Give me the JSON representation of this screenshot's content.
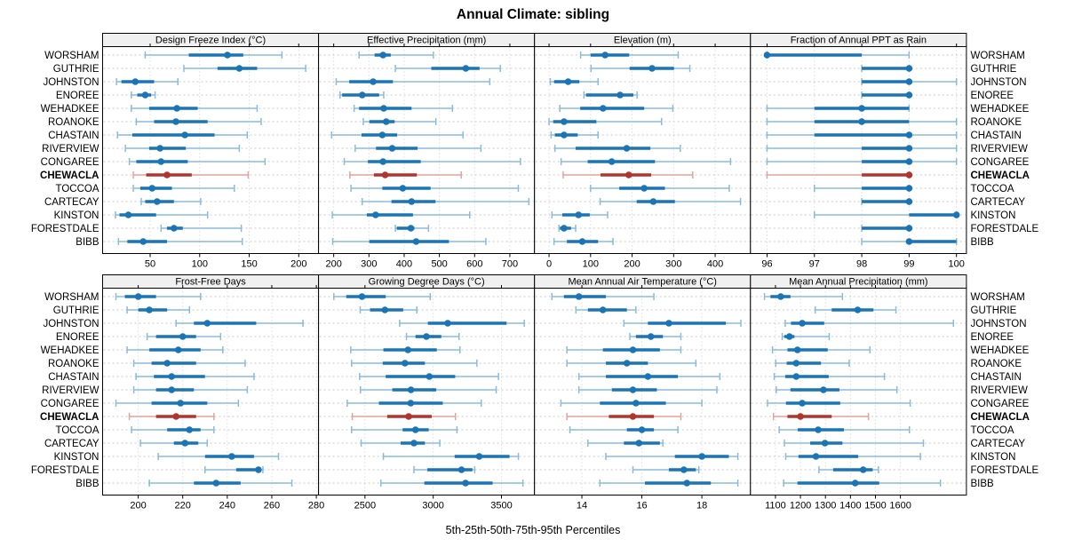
{
  "title": "Annual Climate: sibling",
  "caption": "5th-25th-50th-75th-95th Percentiles",
  "colors": {
    "series": "#1b75b4",
    "series_light": "#8abbdb",
    "highlight": "#b1352c",
    "highlight_light": "#e0a49e",
    "grid": "#c8c8c8",
    "header_bg": "#f0f0f0",
    "border": "#000000"
  },
  "chart_data": {
    "type": "dotplot",
    "subtype": "percentile-interval-trellis",
    "percentile_labels": [
      "5th",
      "25th",
      "50th",
      "75th",
      "95th"
    ],
    "highlighted_series": "CHEWACLA",
    "series_names": [
      "WORSHAM",
      "GUTHRIE",
      "JOHNSTON",
      "ENOREE",
      "WEHADKEE",
      "ROANOKE",
      "CHASTAIN",
      "RIVERVIEW",
      "CONGAREE",
      "CHEWACLA",
      "TOCCOA",
      "CARTECAY",
      "KINSTON",
      "FORESTDALE",
      "BIBB"
    ],
    "layout": {
      "grid_rows": 2,
      "grid_cols": 4,
      "right_labels_mirrored": true,
      "grid": "dotted",
      "legend": false
    },
    "panels": [
      {
        "title": "Design Freeze Index (°C)",
        "xlim": [
          2,
          220
        ],
        "ticks": [
          50,
          100,
          150,
          200
        ],
        "series_values": [
          [
            45,
            89,
            128,
            144,
            183
          ],
          [
            84,
            118,
            140,
            158,
            207
          ],
          [
            16,
            21,
            35,
            54,
            78
          ],
          [
            31,
            37,
            45,
            51,
            55
          ],
          [
            31,
            49,
            77,
            98,
            158
          ],
          [
            36,
            54,
            76,
            108,
            162
          ],
          [
            17,
            32,
            85,
            115,
            148
          ],
          [
            25,
            49,
            60,
            86,
            140
          ],
          [
            29,
            36,
            61,
            88,
            166
          ],
          [
            33,
            46,
            67,
            92,
            149
          ],
          [
            33,
            40,
            52,
            72,
            135
          ],
          [
            41,
            45,
            57,
            74,
            101
          ],
          [
            15,
            19,
            28,
            56,
            108
          ],
          [
            61,
            67,
            74,
            83,
            142
          ],
          [
            18,
            27,
            43,
            67,
            143
          ]
        ]
      },
      {
        "title": "Effective Precipitation (mm)",
        "xlim": [
          157,
          770
        ],
        "ticks": [
          200,
          300,
          400,
          500,
          600,
          700
        ],
        "series_values": [
          [
            272,
            316,
            340,
            362,
            483
          ],
          [
            375,
            477,
            575,
            614,
            673
          ],
          [
            207,
            244,
            312,
            368,
            643
          ],
          [
            218,
            224,
            281,
            329,
            342
          ],
          [
            258,
            272,
            342,
            421,
            537
          ],
          [
            284,
            301,
            349,
            373,
            490
          ],
          [
            194,
            279,
            338,
            380,
            567
          ],
          [
            261,
            320,
            366,
            438,
            618
          ],
          [
            230,
            297,
            340,
            447,
            730
          ],
          [
            246,
            314,
            346,
            436,
            562
          ],
          [
            249,
            338,
            396,
            475,
            724
          ],
          [
            281,
            364,
            421,
            489,
            754
          ],
          [
            196,
            294,
            319,
            425,
            586
          ],
          [
            375,
            379,
            419,
            429,
            469
          ],
          [
            197,
            301,
            434,
            527,
            632
          ]
        ]
      },
      {
        "title": "Elevation (m)",
        "xlim": [
          -35,
          485
        ],
        "ticks": [
          0,
          100,
          200,
          300,
          400
        ],
        "series_values": [
          [
            76,
            100,
            135,
            193,
            311
          ],
          [
            101,
            194,
            248,
            301,
            339
          ],
          [
            3,
            12,
            46,
            73,
            118
          ],
          [
            84,
            89,
            171,
            203,
            212
          ],
          [
            26,
            75,
            130,
            229,
            298
          ],
          [
            0,
            10,
            36,
            114,
            271
          ],
          [
            5,
            14,
            36,
            69,
            118
          ],
          [
            14,
            64,
            187,
            244,
            316
          ],
          [
            29,
            93,
            151,
            255,
            437
          ],
          [
            34,
            124,
            192,
            246,
            346
          ],
          [
            100,
            169,
            229,
            279,
            434
          ],
          [
            123,
            211,
            251,
            303,
            461
          ],
          [
            7,
            32,
            71,
            98,
            141
          ],
          [
            24,
            26,
            36,
            53,
            64
          ],
          [
            12,
            43,
            80,
            118,
            154
          ]
        ]
      },
      {
        "title": "Fraction of Annual PPT as Rain",
        "xlim": [
          95.65,
          100.21
        ],
        "ticks": [
          96,
          97,
          98,
          99,
          100
        ],
        "series_values": [
          [
            96,
            96,
            96,
            98,
            99
          ],
          [
            98,
            98,
            99,
            99,
            99
          ],
          [
            98,
            98,
            99,
            99,
            100
          ],
          [
            98,
            98,
            99,
            99,
            99
          ],
          [
            96,
            97,
            98,
            99,
            99
          ],
          [
            96,
            97,
            98,
            99,
            100
          ],
          [
            96,
            97,
            99,
            99,
            100
          ],
          [
            96,
            98,
            99,
            99,
            100
          ],
          [
            96,
            98,
            99,
            99,
            100
          ],
          [
            96,
            98,
            99,
            99,
            99
          ],
          [
            97,
            98,
            99,
            99,
            99
          ],
          [
            98,
            98,
            99,
            99,
            99
          ],
          [
            97,
            99,
            100,
            100,
            100
          ],
          [
            98,
            98,
            99,
            99,
            99
          ],
          [
            98,
            99,
            99,
            100,
            100
          ]
        ]
      },
      {
        "title": "Frost-Free Days",
        "xlim": [
          184,
          281
        ],
        "ticks": [
          200,
          220,
          240,
          260,
          280
        ],
        "series_values": [
          [
            190,
            194,
            200,
            208,
            228
          ],
          [
            195,
            200,
            205,
            213,
            223
          ],
          [
            217,
            225,
            231,
            253,
            274
          ],
          [
            204,
            208,
            220,
            226,
            237
          ],
          [
            195,
            205,
            218,
            228,
            238
          ],
          [
            198,
            206,
            213,
            226,
            248
          ],
          [
            199,
            207,
            215,
            230,
            252
          ],
          [
            198,
            208,
            215,
            225,
            249
          ],
          [
            190,
            206,
            219,
            231,
            245
          ],
          [
            196,
            208,
            217,
            226,
            234
          ],
          [
            197,
            213,
            223,
            228,
            234
          ],
          [
            201,
            216,
            221,
            227,
            231
          ],
          [
            209,
            230,
            242,
            252,
            263
          ],
          [
            230,
            244,
            254,
            255,
            256
          ],
          [
            205,
            225,
            235,
            246,
            269
          ]
        ]
      },
      {
        "title": "Growing Degree Days (°C)",
        "xlim": [
          2160,
          3742
        ],
        "ticks": [
          2500,
          3000,
          3500
        ],
        "series_values": [
          [
            2272,
            2363,
            2478,
            2652,
            2978
          ],
          [
            2465,
            2537,
            2646,
            2780,
            2880
          ],
          [
            2754,
            2961,
            3106,
            3537,
            3667
          ],
          [
            2804,
            2870,
            2950,
            3059,
            3189
          ],
          [
            2396,
            2635,
            2815,
            3026,
            3196
          ],
          [
            2402,
            2630,
            2793,
            2939,
            3320
          ],
          [
            2461,
            2652,
            2972,
            3161,
            3478
          ],
          [
            2467,
            2700,
            2837,
            3022,
            3461
          ],
          [
            2370,
            2602,
            2835,
            3070,
            3352
          ],
          [
            2407,
            2663,
            2820,
            2989,
            3163
          ],
          [
            2402,
            2776,
            2870,
            2967,
            3174
          ],
          [
            2472,
            2761,
            2859,
            2939,
            3048
          ],
          [
            2635,
            3157,
            3337,
            3559,
            3624
          ],
          [
            2859,
            2957,
            3207,
            3287,
            3304
          ],
          [
            2617,
            2935,
            3237,
            3435,
            3657
          ]
        ]
      },
      {
        "title": "Mean Annual Air Temperature (°C)",
        "xlim": [
          12.42,
          19.62
        ],
        "ticks": [
          14,
          16,
          18
        ],
        "series_values": [
          [
            13.0,
            13.4,
            13.9,
            14.8,
            16.4
          ],
          [
            13.8,
            14.2,
            14.7,
            15.5,
            15.8
          ],
          [
            15.4,
            16.2,
            16.9,
            18.8,
            19.3
          ],
          [
            15.6,
            15.8,
            16.3,
            16.7,
            17.3
          ],
          [
            13.5,
            14.7,
            15.7,
            16.6,
            17.3
          ],
          [
            13.5,
            14.8,
            15.5,
            16.2,
            17.8
          ],
          [
            13.9,
            14.8,
            16.2,
            17.2,
            18.6
          ],
          [
            13.9,
            15.0,
            15.7,
            16.5,
            18.5
          ],
          [
            13.3,
            14.6,
            15.8,
            16.8,
            18.0
          ],
          [
            13.5,
            14.9,
            15.7,
            16.4,
            17.3
          ],
          [
            13.6,
            15.5,
            16.0,
            16.4,
            17.2
          ],
          [
            14.2,
            15.4,
            15.9,
            16.6,
            16.7
          ],
          [
            14.8,
            17.1,
            18.0,
            18.9,
            19.2
          ],
          [
            15.7,
            16.9,
            17.4,
            17.8,
            17.9
          ],
          [
            14.6,
            16.1,
            17.5,
            18.3,
            19.2
          ]
        ]
      },
      {
        "title": "Mean Annual Precipitation (mm)",
        "xlim": [
          1000,
          1864
        ],
        "ticks": [
          1100,
          1200,
          1300,
          1400,
          1500,
          1600
        ],
        "series_values": [
          [
            1056,
            1080,
            1121,
            1160,
            1368
          ],
          [
            1259,
            1325,
            1429,
            1492,
            1582
          ],
          [
            1139,
            1162,
            1207,
            1295,
            1812
          ],
          [
            1127,
            1135,
            1156,
            1176,
            1315
          ],
          [
            1088,
            1148,
            1188,
            1309,
            1478
          ],
          [
            1101,
            1145,
            1183,
            1282,
            1395
          ],
          [
            1095,
            1139,
            1183,
            1313,
            1536
          ],
          [
            1103,
            1160,
            1292,
            1356,
            1586
          ],
          [
            1068,
            1142,
            1207,
            1359,
            1639
          ],
          [
            1092,
            1148,
            1200,
            1325,
            1472
          ],
          [
            1115,
            1189,
            1271,
            1374,
            1636
          ],
          [
            1136,
            1239,
            1298,
            1368,
            1692
          ],
          [
            1141,
            1192,
            1262,
            1431,
            1680
          ],
          [
            1274,
            1331,
            1451,
            1489,
            1512
          ],
          [
            1133,
            1188,
            1419,
            1515,
            1760
          ]
        ]
      }
    ]
  }
}
